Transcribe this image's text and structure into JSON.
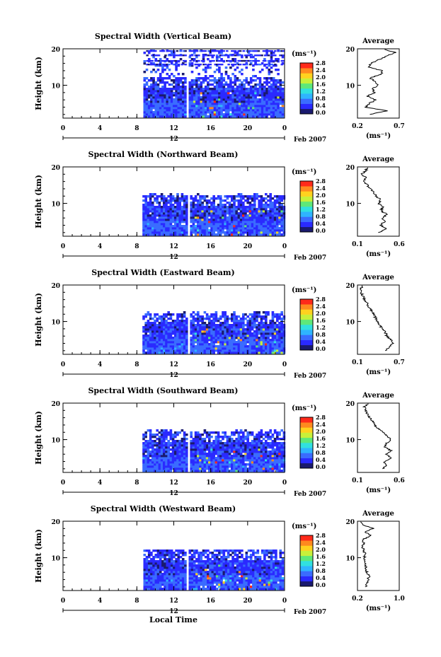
{
  "figure": {
    "xlabel": "Local Time",
    "date_label": "Feb 2007",
    "ylabel": "Height (km)",
    "unit_label": "(ms⁻¹)",
    "colorbar_ticks": [
      "0.0",
      "0.4",
      "0.8",
      "1.2",
      "1.6",
      "2.0",
      "2.4",
      "2.8"
    ],
    "x_ticks": [
      "0",
      "4",
      "8",
      "12",
      "16",
      "20",
      "0"
    ],
    "y_ticks": [
      "10",
      "20"
    ],
    "day_marker_label": "12",
    "avg_title": "Average",
    "avg_unit": "(ms⁻¹)",
    "colormap": [
      "#1a1a6e",
      "#2a2aff",
      "#3a6cff",
      "#2fb4ff",
      "#31e0e0",
      "#5ee87a",
      "#c8f03a",
      "#ffd21f",
      "#ff8a1f",
      "#ff2a1a"
    ]
  },
  "chart_data": [
    {
      "type": "heatmap",
      "title": "Spectral Width (Vertical Beam)",
      "xlim": [
        0,
        24
      ],
      "ylim": [
        1,
        20
      ],
      "clim": [
        0,
        2.8
      ],
      "data_start_hour": 8.7,
      "gap_hours": [
        13.3,
        13.6
      ],
      "profile_top_km": 19.8,
      "avg_xticks": [
        "0.2",
        "0.7"
      ],
      "avg_xlim": [
        0.2,
        0.7
      ],
      "avg_profile": [
        [
          0.35,
          2
        ],
        [
          0.55,
          3
        ],
        [
          0.3,
          4
        ],
        [
          0.34,
          5
        ],
        [
          0.42,
          6
        ],
        [
          0.32,
          7
        ],
        [
          0.4,
          8
        ],
        [
          0.38,
          9
        ],
        [
          0.45,
          10
        ],
        [
          0.42,
          11
        ],
        [
          0.35,
          12
        ],
        [
          0.48,
          13
        ],
        [
          0.5,
          14
        ],
        [
          0.32,
          15
        ],
        [
          0.36,
          16
        ],
        [
          0.45,
          17
        ],
        [
          0.55,
          18
        ],
        [
          0.65,
          19
        ],
        [
          0.5,
          20
        ]
      ]
    },
    {
      "type": "heatmap",
      "title": "Spectral Width (Northward Beam)",
      "xlim": [
        0,
        24
      ],
      "ylim": [
        1,
        20
      ],
      "clim": [
        0,
        2.8
      ],
      "data_start_hour": 8.6,
      "gap_hours": [
        13.3,
        13.6
      ],
      "profile_top_km": 12.5,
      "avg_xticks": [
        "0.1",
        "0.6"
      ],
      "avg_xlim": [
        0.1,
        0.6
      ],
      "avg_profile": [
        [
          0.35,
          2
        ],
        [
          0.45,
          3
        ],
        [
          0.38,
          4
        ],
        [
          0.42,
          5
        ],
        [
          0.4,
          6
        ],
        [
          0.45,
          7
        ],
        [
          0.38,
          8
        ],
        [
          0.4,
          9
        ],
        [
          0.35,
          10
        ],
        [
          0.38,
          11
        ],
        [
          0.32,
          12
        ],
        [
          0.3,
          13
        ],
        [
          0.25,
          14
        ],
        [
          0.22,
          15
        ],
        [
          0.18,
          16
        ],
        [
          0.2,
          17
        ],
        [
          0.15,
          18
        ],
        [
          0.2,
          19
        ],
        [
          0.22,
          20
        ]
      ]
    },
    {
      "type": "heatmap",
      "title": "Spectral Width (Eastward Beam)",
      "xlim": [
        0,
        24
      ],
      "ylim": [
        1,
        20
      ],
      "clim": [
        0,
        2.8
      ],
      "data_start_hour": 8.6,
      "gap_hours": [
        13.3,
        13.6
      ],
      "profile_top_km": 12.5,
      "avg_xticks": [
        "0.1",
        "0.7"
      ],
      "avg_xlim": [
        0.1,
        0.7
      ],
      "avg_profile": [
        [
          0.5,
          2
        ],
        [
          0.55,
          3
        ],
        [
          0.6,
          4
        ],
        [
          0.58,
          5
        ],
        [
          0.52,
          6
        ],
        [
          0.5,
          7
        ],
        [
          0.45,
          8
        ],
        [
          0.42,
          9
        ],
        [
          0.38,
          10
        ],
        [
          0.36,
          11
        ],
        [
          0.33,
          12
        ],
        [
          0.3,
          13
        ],
        [
          0.26,
          14
        ],
        [
          0.24,
          15
        ],
        [
          0.2,
          16
        ],
        [
          0.18,
          17
        ],
        [
          0.15,
          18
        ],
        [
          0.14,
          19
        ],
        [
          0.2,
          20
        ]
      ]
    },
    {
      "type": "heatmap",
      "title": "Spectral Width (Southward Beam)",
      "xlim": [
        0,
        24
      ],
      "ylim": [
        1,
        20
      ],
      "clim": [
        0,
        2.8
      ],
      "data_start_hour": 8.6,
      "gap_hours": [
        13.3,
        13.6
      ],
      "profile_top_km": 12.5,
      "avg_xticks": [
        "0.1",
        "0.6"
      ],
      "avg_xlim": [
        0.1,
        0.6
      ],
      "avg_profile": [
        [
          0.4,
          2
        ],
        [
          0.45,
          3
        ],
        [
          0.42,
          4
        ],
        [
          0.5,
          5
        ],
        [
          0.45,
          6
        ],
        [
          0.5,
          7
        ],
        [
          0.42,
          8
        ],
        [
          0.45,
          9
        ],
        [
          0.5,
          10
        ],
        [
          0.45,
          11
        ],
        [
          0.4,
          12
        ],
        [
          0.35,
          13
        ],
        [
          0.3,
          14
        ],
        [
          0.28,
          15
        ],
        [
          0.25,
          16
        ],
        [
          0.22,
          17
        ],
        [
          0.2,
          18
        ],
        [
          0.18,
          19
        ],
        [
          0.25,
          20
        ]
      ]
    },
    {
      "type": "heatmap",
      "title": "Spectral Width (Westward Beam)",
      "xlim": [
        0,
        24
      ],
      "ylim": [
        1,
        20
      ],
      "clim": [
        0,
        2.8
      ],
      "data_start_hour": 8.7,
      "gap_hours": [
        13.3,
        13.6
      ],
      "profile_top_km": 12.0,
      "avg_xticks": [
        "0.2",
        "1.0"
      ],
      "avg_xlim": [
        0.2,
        1.0
      ],
      "avg_profile": [
        [
          0.35,
          2
        ],
        [
          0.38,
          3
        ],
        [
          0.4,
          4
        ],
        [
          0.42,
          5
        ],
        [
          0.38,
          6
        ],
        [
          0.36,
          7
        ],
        [
          0.35,
          8
        ],
        [
          0.34,
          9
        ],
        [
          0.33,
          10
        ],
        [
          0.35,
          11
        ],
        [
          0.32,
          12
        ],
        [
          0.3,
          13
        ],
        [
          0.32,
          14
        ],
        [
          0.3,
          15
        ],
        [
          0.45,
          16
        ],
        [
          0.35,
          17
        ],
        [
          0.5,
          18
        ],
        [
          0.3,
          19
        ],
        [
          0.25,
          20
        ]
      ]
    }
  ]
}
